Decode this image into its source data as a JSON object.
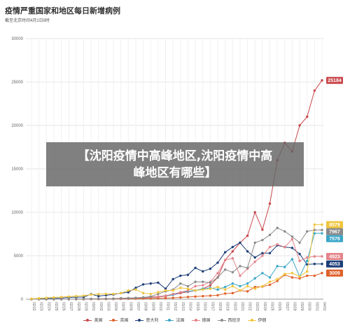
{
  "header": {
    "title": "疫情严重国家和地区每日新增病例",
    "subtitle": "截至北京时间4月1日8时"
  },
  "banner": {
    "line1": "【沈阳疫情中高峰地区,沈阳疫情中高",
    "line2": "峰地区有哪些】"
  },
  "colors": {
    "美国": "#c8474b",
    "英国": "#e0602a",
    "意大利": "#1f3f7a",
    "法国": "#3aa6c8",
    "德国": "#e5838a",
    "西班牙": "#8a8a8a",
    "伊朗": "#f0c53c"
  },
  "chart_data": {
    "type": "line",
    "title": "疫情严重国家和地区每日新增病例",
    "subtitle": "截至北京时间4月1日8时",
    "ylim": [
      0,
      30000
    ],
    "yticks": [
      0,
      5000,
      10000,
      15000,
      20000,
      25000,
      30000
    ],
    "grid": true,
    "legend_position": "bottom",
    "categories": [
      "02/22",
      "02/23",
      "02/24",
      "02/25",
      "02/26",
      "02/27",
      "02/28",
      "02/29",
      "03/01",
      "03/02",
      "03/03",
      "03/04",
      "03/05",
      "03/06",
      "03/07",
      "03/08",
      "03/09",
      "03/10",
      "03/11",
      "03/12",
      "03/13",
      "03/14",
      "03/15",
      "03/16",
      "03/17",
      "03/18",
      "03/19",
      "03/20",
      "03/21",
      "03/22",
      "03/23",
      "03/24",
      "03/25",
      "03/26",
      "03/27",
      "03/28",
      "03/29",
      "03/30",
      "03/31",
      "04/01"
    ],
    "series": [
      {
        "name": "美国",
        "color": "#c8474b",
        "values": [
          0,
          0,
          0,
          0,
          0,
          0,
          0,
          5,
          10,
          20,
          30,
          40,
          50,
          80,
          120,
          150,
          200,
          250,
          350,
          500,
          700,
          850,
          1000,
          1200,
          1600,
          2500,
          4500,
          5500,
          6500,
          7300,
          10000,
          8000,
          11000,
          16000,
          18000,
          17000,
          20000,
          21000,
          24000,
          25184
        ],
        "end_label": "25184"
      },
      {
        "name": "英国",
        "color": "#e0602a",
        "values": [
          0,
          0,
          0,
          0,
          0,
          0,
          0,
          0,
          10,
          15,
          20,
          30,
          40,
          50,
          60,
          70,
          80,
          100,
          120,
          150,
          200,
          250,
          300,
          350,
          400,
          450,
          650,
          700,
          1000,
          900,
          1400,
          1450,
          1650,
          2100,
          2800,
          2500,
          2400,
          2700,
          2700,
          3009
        ],
        "end_label": "3009"
      },
      {
        "name": "意大利",
        "color": "#1f3f7a",
        "values": [
          20,
          70,
          90,
          100,
          120,
          200,
          230,
          240,
          570,
          350,
          450,
          540,
          700,
          800,
          1300,
          1700,
          1800,
          1900,
          1200,
          2300,
          2700,
          2800,
          3600,
          3200,
          3500,
          4200,
          5400,
          6000,
          6500,
          5500,
          4800,
          5300,
          5300,
          6200,
          6000,
          5900,
          5200,
          4000,
          4053,
          4053
        ],
        "end_label": "4053"
      },
      {
        "name": "法国",
        "color": "#3aa6c8",
        "values": [
          0,
          0,
          0,
          0,
          0,
          0,
          10,
          20,
          30,
          40,
          50,
          60,
          90,
          100,
          150,
          200,
          250,
          300,
          400,
          500,
          800,
          900,
          1000,
          1200,
          1300,
          1100,
          1400,
          1800,
          1500,
          1800,
          2400,
          3000,
          2500,
          3800,
          3700,
          4600,
          2600,
          4400,
          7578,
          7578
        ],
        "end_label": "7578"
      },
      {
        "name": "德国",
        "color": "#e5838a",
        "values": [
          0,
          0,
          0,
          0,
          0,
          0,
          0,
          10,
          20,
          40,
          50,
          60,
          90,
          120,
          150,
          200,
          250,
          300,
          400,
          600,
          800,
          1000,
          1500,
          1600,
          2000,
          3000,
          4500,
          4700,
          2700,
          3500,
          4300,
          5000,
          6000,
          6300,
          6000,
          6900,
          4400,
          4800,
          4923,
          4923
        ],
        "end_label": "4923"
      },
      {
        "name": "西班牙",
        "color": "#8a8a8a",
        "values": [
          0,
          0,
          0,
          0,
          0,
          0,
          10,
          20,
          30,
          40,
          50,
          60,
          100,
          130,
          150,
          200,
          300,
          600,
          900,
          1100,
          1800,
          1500,
          2000,
          2000,
          1900,
          2500,
          3400,
          3100,
          3800,
          3600,
          6500,
          6800,
          7400,
          8200,
          7800,
          7200,
          6500,
          7800,
          7967,
          7967
        ],
        "end_label": "7967"
      },
      {
        "name": "伊朗",
        "color": "#f0c53c",
        "values": [
          50,
          100,
          150,
          200,
          250,
          300,
          350,
          400,
          520,
          580,
          600,
          600,
          700,
          1000,
          1100,
          700,
          600,
          800,
          1000,
          1000,
          1300,
          1200,
          1000,
          1100,
          1200,
          1400,
          1100,
          1500,
          1000,
          1500,
          1200,
          1500,
          2000,
          2300,
          2900,
          3000,
          2600,
          3200,
          8579,
          8579
        ],
        "end_label": "8579"
      }
    ]
  }
}
